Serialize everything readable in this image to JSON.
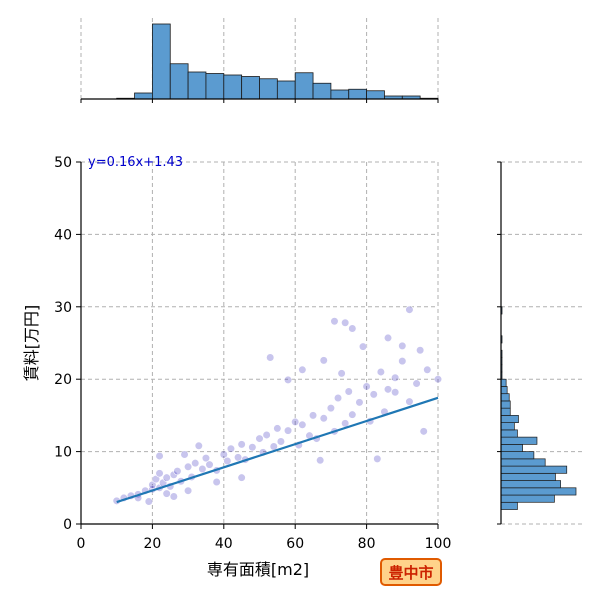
{
  "chart_data": {
    "type": "scatter",
    "variant": "jointplot",
    "xlabel": "専有面積[m2]",
    "ylabel": "賃料[万円]",
    "xlim": [
      0,
      100
    ],
    "ylim": [
      0,
      50
    ],
    "x_ticks": [
      "0",
      "20",
      "40",
      "60",
      "80",
      "100"
    ],
    "y_ticks": [
      "0",
      "10",
      "20",
      "30",
      "40",
      "50"
    ],
    "grid": true,
    "grid_style": "dashed",
    "regression": {
      "equation": "y=0.16x+1.43",
      "slope": 0.16,
      "intercept": 1.43,
      "x_range": [
        10,
        100
      ],
      "color": "#1f77b4"
    },
    "equation_color": "#0000cc",
    "point_color": "#3a2fbf",
    "hist_color": "#5b9bd0",
    "badge": {
      "text": "豊中市",
      "text_color": "#cc2200",
      "fill": "#ffd28a",
      "border": "#e05a00"
    },
    "scatter_points_sample": [
      [
        10,
        3.2
      ],
      [
        12,
        3.6
      ],
      [
        14,
        3.9
      ],
      [
        16,
        4.1
      ],
      [
        18,
        4.6
      ],
      [
        20,
        4.8
      ],
      [
        20,
        5.4
      ],
      [
        21,
        6.2
      ],
      [
        22,
        5.0
      ],
      [
        22,
        7.0
      ],
      [
        23,
        5.7
      ],
      [
        24,
        6.4
      ],
      [
        25,
        5.2
      ],
      [
        26,
        6.8
      ],
      [
        27,
        7.3
      ],
      [
        28,
        5.9
      ],
      [
        30,
        7.9
      ],
      [
        31,
        6.5
      ],
      [
        32,
        8.4
      ],
      [
        34,
        7.6
      ],
      [
        35,
        9.1
      ],
      [
        36,
        8.2
      ],
      [
        38,
        7.4
      ],
      [
        40,
        9.6
      ],
      [
        41,
        8.7
      ],
      [
        42,
        10.4
      ],
      [
        44,
        9.2
      ],
      [
        45,
        11.0
      ],
      [
        46,
        8.9
      ],
      [
        48,
        10.6
      ],
      [
        50,
        11.8
      ],
      [
        51,
        9.9
      ],
      [
        52,
        12.3
      ],
      [
        54,
        10.7
      ],
      [
        55,
        13.2
      ],
      [
        56,
        11.4
      ],
      [
        58,
        12.9
      ],
      [
        60,
        14.1
      ],
      [
        61,
        10.9
      ],
      [
        62,
        13.7
      ],
      [
        64,
        12.2
      ],
      [
        65,
        15.0
      ],
      [
        66,
        11.8
      ],
      [
        68,
        14.6
      ],
      [
        70,
        16.0
      ],
      [
        71,
        12.8
      ],
      [
        72,
        17.4
      ],
      [
        74,
        13.9
      ],
      [
        75,
        18.3
      ],
      [
        76,
        15.1
      ],
      [
        78,
        16.8
      ],
      [
        80,
        19.0
      ],
      [
        81,
        14.2
      ],
      [
        82,
        17.9
      ],
      [
        84,
        21.0
      ],
      [
        85,
        15.5
      ],
      [
        86,
        18.6
      ],
      [
        88,
        20.2
      ],
      [
        90,
        22.5
      ],
      [
        92,
        16.9
      ],
      [
        94,
        19.4
      ],
      [
        95,
        24.0
      ],
      [
        97,
        21.3
      ],
      [
        100,
        20.0
      ],
      [
        71,
        28.0
      ],
      [
        74,
        27.8
      ],
      [
        76,
        27.0
      ],
      [
        86,
        25.7
      ],
      [
        92,
        29.6
      ],
      [
        53,
        23.0
      ],
      [
        62,
        21.3
      ],
      [
        68,
        22.6
      ],
      [
        79,
        24.5
      ],
      [
        90,
        24.6
      ],
      [
        58,
        19.9
      ],
      [
        73,
        20.8
      ],
      [
        88,
        18.2
      ],
      [
        96,
        12.8
      ],
      [
        83,
        9.0
      ],
      [
        67,
        8.8
      ],
      [
        45,
        6.4
      ],
      [
        38,
        5.8
      ],
      [
        30,
        4.6
      ],
      [
        26,
        3.8
      ],
      [
        24,
        4.2
      ],
      [
        19,
        3.1
      ],
      [
        16,
        3.6
      ],
      [
        33,
        10.8
      ],
      [
        29,
        9.6
      ],
      [
        22,
        9.4
      ]
    ],
    "top_hist": {
      "bin_edges": [
        0,
        5,
        10,
        15,
        20,
        25,
        30,
        35,
        40,
        45,
        50,
        55,
        60,
        65,
        70,
        75,
        80,
        85,
        90,
        95,
        100
      ],
      "counts": [
        0,
        0,
        1,
        8,
        100,
        47,
        36,
        34,
        32,
        30,
        27,
        24,
        35,
        21,
        12,
        13,
        11,
        4,
        4,
        1
      ]
    },
    "right_hist": {
      "bin_edges": [
        2,
        3,
        4,
        5,
        6,
        7,
        8,
        9,
        10,
        11,
        12,
        13,
        14,
        15,
        16,
        17,
        18,
        19,
        20,
        21,
        22,
        23,
        24,
        25,
        26,
        27,
        28,
        29,
        30
      ],
      "counts": [
        16,
        52,
        73,
        58,
        53,
        64,
        43,
        32,
        21,
        35,
        16,
        13,
        17,
        9,
        9,
        8,
        6,
        5,
        1,
        1,
        1,
        1,
        0,
        1,
        0,
        0,
        0,
        1
      ]
    }
  }
}
